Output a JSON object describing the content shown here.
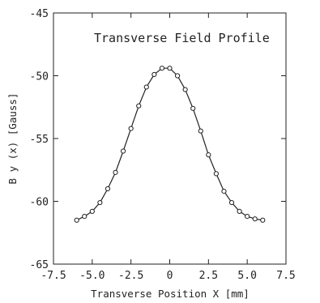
{
  "chart_data": {
    "type": "line",
    "title": "Transverse Field Profile",
    "xlabel": "Transverse Position X [mm]",
    "ylabel": "B y (x) [Gauss]",
    "xlim": [
      -7.5,
      7.5
    ],
    "ylim": [
      -65,
      -45
    ],
    "x_ticks": [
      -7.5,
      -5.0,
      -2.5,
      0,
      2.5,
      5.0,
      7.5
    ],
    "x_tick_labels": [
      "-7.5",
      "-5.0",
      "-2.5",
      "0",
      "2.5",
      "5.0",
      "7.5"
    ],
    "y_ticks": [
      -65,
      -60,
      -55,
      -50,
      -45
    ],
    "y_tick_labels": [
      "-65",
      "-60",
      "-55",
      "-50",
      "-45"
    ],
    "grid": false,
    "legend": "none",
    "marker": "open-circle",
    "series": [
      {
        "x": [
          -6.0,
          -5.5,
          -5.0,
          -4.5,
          -4.0,
          -3.5,
          -3.0,
          -2.5,
          -2.0,
          -1.5,
          -1.0,
          -0.5,
          0.0,
          0.5,
          1.0,
          1.5,
          2.0,
          2.5,
          3.0,
          3.5,
          4.0,
          4.5,
          5.0,
          5.5,
          6.0
        ],
        "values": [
          -61.5,
          -61.2,
          -60.8,
          -60.1,
          -59.0,
          -57.7,
          -56.0,
          -54.2,
          -52.4,
          -50.9,
          -49.9,
          -49.4,
          -49.4,
          -50.0,
          -51.1,
          -52.6,
          -54.4,
          -56.3,
          -57.8,
          -59.2,
          -60.1,
          -60.8,
          -61.2,
          -61.4,
          -61.5
        ]
      }
    ]
  }
}
